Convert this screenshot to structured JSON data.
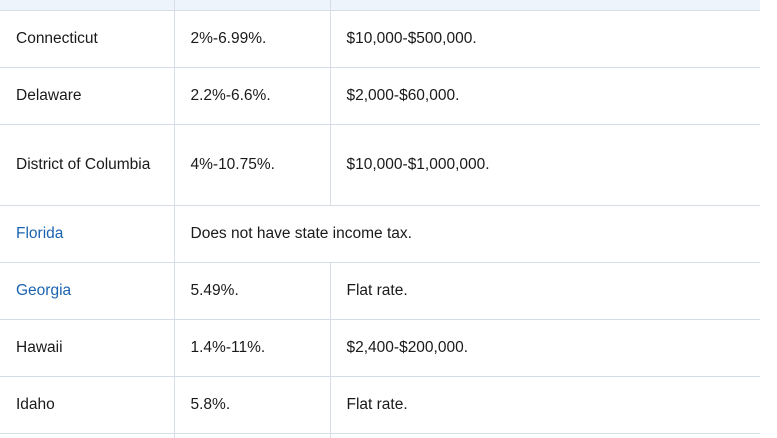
{
  "table": {
    "rows": [
      {
        "state": "Connecticut",
        "rate": "2%-6.99%.",
        "bracket": "$10,000-$500,000.",
        "link": false
      },
      {
        "state": "Delaware",
        "rate": "2.2%-6.6%.",
        "bracket": "$2,000-$60,000.",
        "link": false
      },
      {
        "state": "District of Columbia",
        "rate": "4%-10.75%.",
        "bracket": "$10,000-$1,000,000.",
        "link": false
      },
      {
        "state": "Florida",
        "note": "Does not have state income tax.",
        "link": true
      },
      {
        "state": "Georgia",
        "rate": "5.49%.",
        "bracket": "Flat rate.",
        "link": true
      },
      {
        "state": "Hawaii",
        "rate": "1.4%-11%.",
        "bracket": "$2,400-$200,000.",
        "link": false
      },
      {
        "state": "Idaho",
        "rate": "5.8%.",
        "bracket": "Flat rate.",
        "link": false
      }
    ]
  }
}
